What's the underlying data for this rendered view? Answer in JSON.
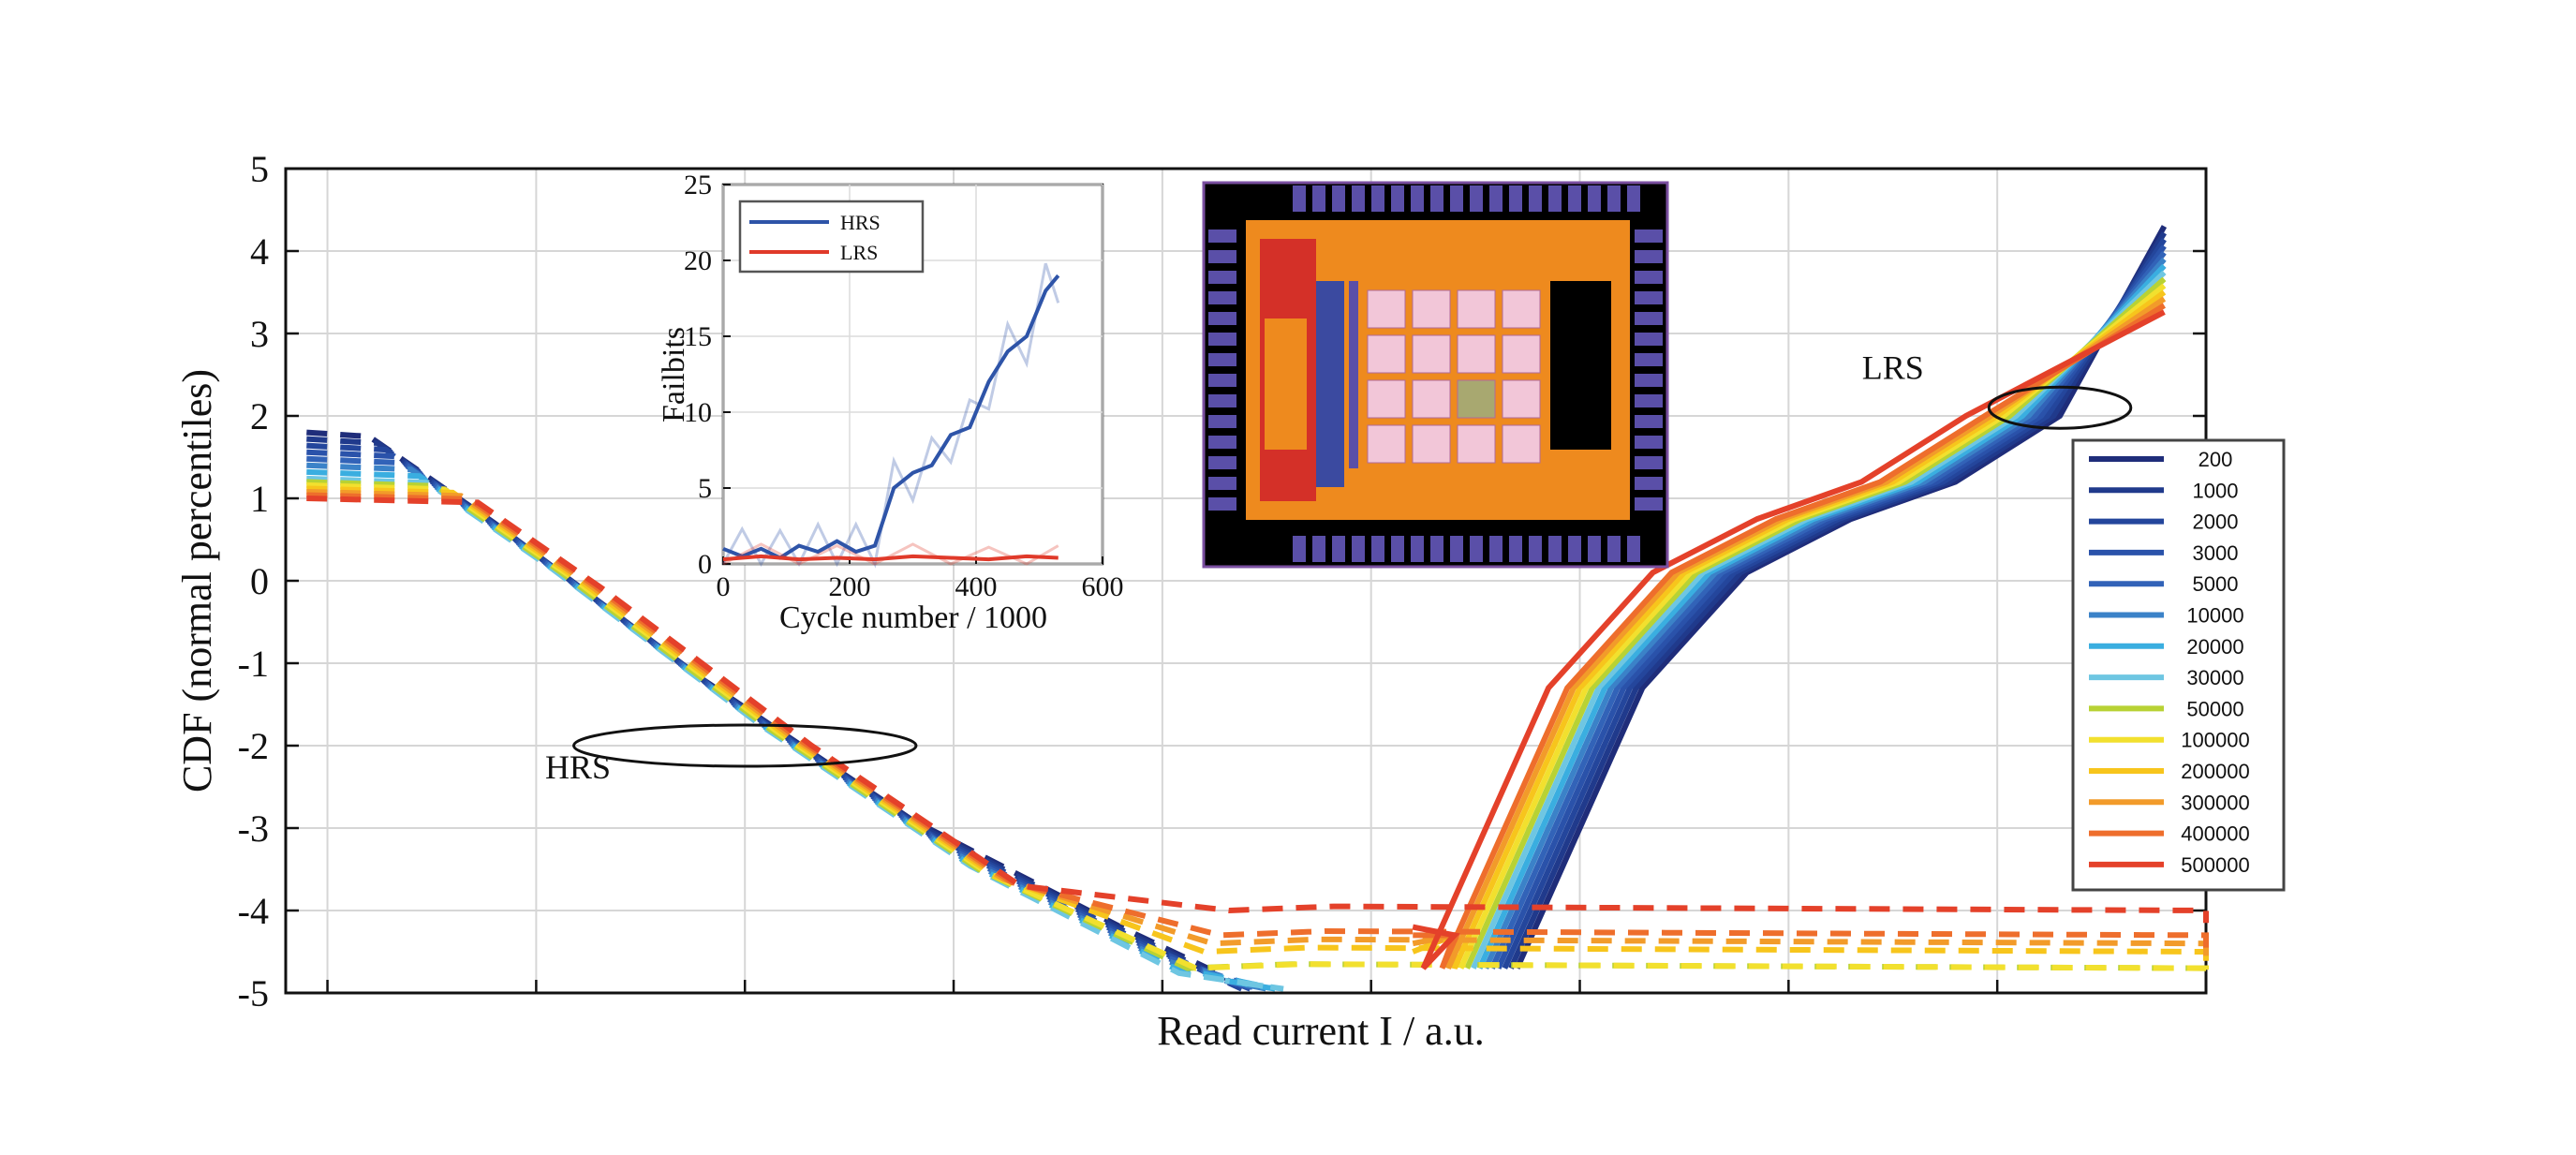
{
  "chart_data": [
    {
      "type": "line",
      "xlabel": "Read current I / a.u.",
      "ylabel": "CDF (normal percentiles)",
      "xlim": [
        0,
        9.2
      ],
      "ylim": [
        -5,
        5
      ],
      "yticks": [
        "5",
        "4",
        "3",
        "2",
        "1",
        "0",
        "-1",
        "-2",
        "-3",
        "-4",
        "-5"
      ],
      "xticks_labeled": false,
      "grid": true,
      "legend_position": "right",
      "annotations": [
        {
          "text": "HRS",
          "x": 1.4,
          "y": -2.4,
          "ellipse_center": [
            2.2,
            -2.0
          ],
          "ellipse_radius": [
            0.82,
            0.25
          ]
        },
        {
          "text": "LRS",
          "x": 7.7,
          "y": 2.45,
          "ellipse_center": [
            8.5,
            2.1
          ],
          "ellipse_radius": [
            0.34,
            0.25
          ]
        }
      ],
      "series": [
        {
          "name": "200",
          "color": "#1f2d7a",
          "hrs_offset": 0.0,
          "plateau": -5.0,
          "lrs_shift": 0.0
        },
        {
          "name": "1000",
          "color": "#203a8c",
          "hrs_offset": -0.08,
          "plateau": -5.0,
          "lrs_shift": 0.03
        },
        {
          "name": "2000",
          "color": "#24469c",
          "hrs_offset": -0.16,
          "plateau": -5.0,
          "lrs_shift": 0.06
        },
        {
          "name": "3000",
          "color": "#2a52aa",
          "hrs_offset": -0.24,
          "plateau": -5.0,
          "lrs_shift": 0.09
        },
        {
          "name": "5000",
          "color": "#3263b8",
          "hrs_offset": -0.32,
          "plateau": -5.0,
          "lrs_shift": 0.12
        },
        {
          "name": "10000",
          "color": "#3b82c8",
          "hrs_offset": -0.4,
          "plateau": -5.0,
          "lrs_shift": 0.15
        },
        {
          "name": "20000",
          "color": "#3aaee0",
          "hrs_offset": -0.48,
          "plateau": -5.0,
          "lrs_shift": 0.18
        },
        {
          "name": "30000",
          "color": "#6ec6e2",
          "hrs_offset": -0.56,
          "plateau": -5.0,
          "lrs_shift": 0.21
        },
        {
          "name": "50000",
          "color": "#b8d234",
          "hrs_offset": -0.6,
          "plateau": -4.7,
          "lrs_shift": 0.24
        },
        {
          "name": "100000",
          "color": "#f2e02e",
          "hrs_offset": -0.64,
          "plateau": -4.7,
          "lrs_shift": 0.27
        },
        {
          "name": "200000",
          "color": "#f7c51c",
          "hrs_offset": -0.68,
          "plateau": -4.5,
          "lrs_shift": 0.3
        },
        {
          "name": "300000",
          "color": "#f29b2a",
          "hrs_offset": -0.72,
          "plateau": -4.4,
          "lrs_shift": 0.33
        },
        {
          "name": "400000",
          "color": "#ee6e2c",
          "hrs_offset": -0.76,
          "plateau": -4.3,
          "lrs_shift": 0.36
        },
        {
          "name": "500000",
          "color": "#e4412a",
          "hrs_offset": -0.8,
          "plateau": -4.0,
          "lrs_shift": 0.45
        }
      ],
      "hrs_base": [
        [
          0.1,
          1.8
        ],
        [
          0.4,
          1.75
        ],
        [
          1.0,
          0.7
        ],
        [
          2.0,
          -1.2
        ],
        [
          3.0,
          -2.9
        ],
        [
          4.0,
          -4.2
        ],
        [
          4.5,
          -4.8
        ]
      ],
      "lrs_base": [
        [
          5.9,
          -4.7
        ],
        [
          6.2,
          -3.0
        ],
        [
          6.5,
          -1.3
        ],
        [
          7.0,
          0.1
        ],
        [
          7.5,
          0.75
        ],
        [
          8.0,
          1.2
        ],
        [
          8.5,
          2.0
        ],
        [
          9.0,
          4.3
        ]
      ]
    },
    {
      "type": "line",
      "xlabel": "Cycle number / 1000",
      "ylabel": "Failbits",
      "xlim": [
        0,
        600
      ],
      "ylim": [
        0,
        25
      ],
      "xticks": [
        0,
        200,
        400,
        600
      ],
      "yticks": [
        0,
        5,
        10,
        15,
        20,
        25
      ],
      "legend_position": "top-left",
      "series": [
        {
          "name": "HRS",
          "color": "#2e54a8",
          "x": [
            0,
            30,
            60,
            90,
            120,
            150,
            180,
            210,
            240,
            270,
            300,
            330,
            360,
            390,
            420,
            450,
            480,
            510,
            530
          ],
          "values": [
            1,
            0.5,
            1,
            0.4,
            1.2,
            0.8,
            1.5,
            0.8,
            1.2,
            5,
            6,
            6.5,
            8.5,
            9,
            12,
            14,
            15,
            18,
            19
          ]
        },
        {
          "name": "LRS",
          "color": "#e03a2a",
          "x": [
            0,
            60,
            120,
            180,
            240,
            300,
            360,
            420,
            480,
            530
          ],
          "values": [
            0.3,
            0.5,
            0.3,
            0.4,
            0.3,
            0.5,
            0.4,
            0.3,
            0.5,
            0.4
          ]
        }
      ]
    }
  ],
  "inset_image": {
    "description_icon": "chip-layout-image",
    "colors": {
      "background": "#000000",
      "metal": "#ee8a1e",
      "pads": "#5a4fa8",
      "blocks": "#f2c6d8",
      "logic": "#d43028"
    }
  }
}
